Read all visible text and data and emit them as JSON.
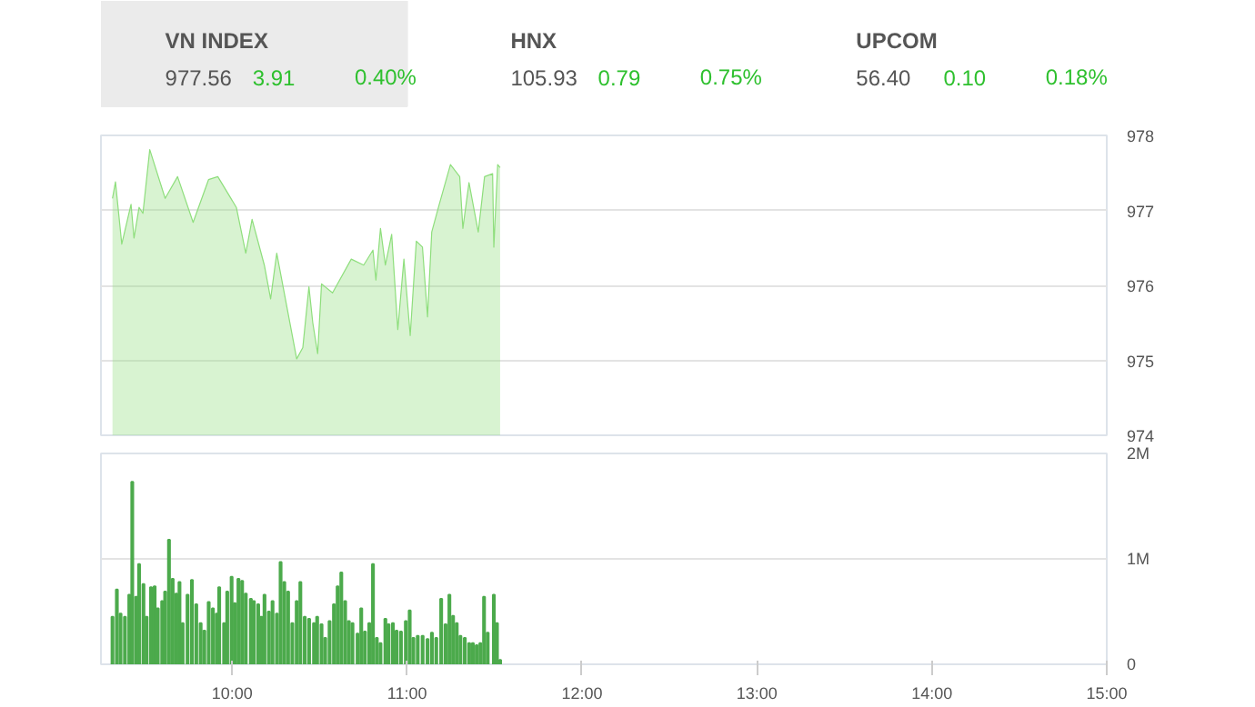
{
  "chart_data": [
    {
      "type": "other",
      "annotations": [
        "VN INDEX",
        "977.56",
        "3.91",
        "0.40%",
        "HNX",
        "105.93",
        "0.79",
        "0.75%",
        "UPCOM",
        "56.40",
        "0.10",
        "0.18%"
      ]
    },
    {
      "type": "area",
      "color": "#8ede7c",
      "xlim": [
        9.25,
        15.0
      ],
      "ylim": [
        974,
        978
      ],
      "yticks": [
        974,
        975,
        976,
        977,
        978
      ],
      "grid": "y",
      "tick_labels": "y",
      "x": [
        9.316,
        9.333,
        9.369,
        9.422,
        9.439,
        9.468,
        9.49,
        9.529,
        9.617,
        9.688,
        9.777,
        9.865,
        9.918,
        10.024,
        10.078,
        10.114,
        10.184,
        10.22,
        10.255,
        10.369,
        10.404,
        10.439,
        10.461,
        10.489,
        10.511,
        10.574,
        10.681,
        10.752,
        10.805,
        10.822,
        10.848,
        10.876,
        10.912,
        10.947,
        10.982,
        11.018,
        11.053,
        11.088,
        11.117,
        11.141,
        11.184,
        11.248,
        11.301,
        11.319,
        11.354,
        11.407,
        11.443,
        11.489,
        11.496,
        11.518,
        11.532
      ],
      "values": [
        977.16,
        977.38,
        976.55,
        977.08,
        976.63,
        977.04,
        976.96,
        977.81,
        977.16,
        977.45,
        976.84,
        977.41,
        977.45,
        977.04,
        976.43,
        976.88,
        976.27,
        975.82,
        976.43,
        975.02,
        975.17,
        975.98,
        975.5,
        975.09,
        976.02,
        975.9,
        976.35,
        976.27,
        976.47,
        976.07,
        976.76,
        976.27,
        976.68,
        975.41,
        976.35,
        975.33,
        976.59,
        976.51,
        975.58,
        976.71,
        977.08,
        977.61,
        977.45,
        976.76,
        977.37,
        976.71,
        977.45,
        977.49,
        976.51,
        977.61,
        977.57
      ]
    },
    {
      "type": "bar",
      "color": "#4caa4c",
      "xlim": [
        9.25,
        15.0
      ],
      "ylim": [
        0,
        2000000
      ],
      "grid": "y",
      "xticks": [
        {
          "value": 10,
          "label": "10:00"
        },
        {
          "value": 11,
          "label": "11:00"
        },
        {
          "value": 12,
          "label": "12:00"
        },
        {
          "value": 13,
          "label": "13:00"
        },
        {
          "value": 14,
          "label": "14:00"
        },
        {
          "value": 15,
          "label": "15:00"
        }
      ],
      "yticks": [
        0,
        {
          "value": 1000000,
          "label": "1M"
        },
        {
          "value": 2000000,
          "label": "2M"
        }
      ],
      "x": [
        9.316,
        9.341,
        9.362,
        9.387,
        9.412,
        9.429,
        9.451,
        9.468,
        9.493,
        9.511,
        9.536,
        9.557,
        9.575,
        9.6,
        9.617,
        9.639,
        9.66,
        9.681,
        9.699,
        9.717,
        9.745,
        9.77,
        9.795,
        9.82,
        9.841,
        9.866,
        9.89,
        9.912,
        9.926,
        9.954,
        9.972,
        9.997,
        10.015,
        10.036,
        10.057,
        10.078,
        10.107,
        10.124,
        10.149,
        10.167,
        10.185,
        10.21,
        10.231,
        10.256,
        10.277,
        10.298,
        10.32,
        10.344,
        10.369,
        10.39,
        10.415,
        10.44,
        10.468,
        10.486,
        10.511,
        10.532,
        10.557,
        10.582,
        10.603,
        10.624,
        10.646,
        10.667,
        10.688,
        10.717,
        10.738,
        10.759,
        10.784,
        10.805,
        10.827,
        10.848,
        10.876,
        10.894,
        10.919,
        10.94,
        10.965,
        10.993,
        11.015,
        11.036,
        11.061,
        11.089,
        11.117,
        11.142,
        11.167,
        11.195,
        11.22,
        11.242,
        11.263,
        11.284,
        11.305,
        11.33,
        11.355,
        11.376,
        11.398,
        11.419,
        11.44,
        11.461,
        11.496,
        11.514,
        11.532
      ],
      "values": [
        450000,
        710000,
        480000,
        450000,
        660000,
        1730000,
        640000,
        950000,
        760000,
        450000,
        730000,
        740000,
        530000,
        600000,
        690000,
        1180000,
        810000,
        670000,
        780000,
        390000,
        660000,
        800000,
        570000,
        390000,
        320000,
        590000,
        530000,
        480000,
        730000,
        390000,
        690000,
        830000,
        580000,
        810000,
        790000,
        670000,
        620000,
        600000,
        570000,
        450000,
        660000,
        500000,
        600000,
        480000,
        970000,
        780000,
        690000,
        390000,
        600000,
        780000,
        450000,
        430000,
        390000,
        450000,
        380000,
        250000,
        410000,
        570000,
        740000,
        870000,
        600000,
        410000,
        390000,
        290000,
        530000,
        310000,
        390000,
        950000,
        250000,
        200000,
        430000,
        380000,
        390000,
        320000,
        310000,
        410000,
        510000,
        250000,
        270000,
        270000,
        240000,
        300000,
        250000,
        620000,
        380000,
        660000,
        460000,
        390000,
        270000,
        250000,
        200000,
        200000,
        180000,
        200000,
        640000,
        300000,
        660000,
        390000,
        40000
      ]
    }
  ]
}
